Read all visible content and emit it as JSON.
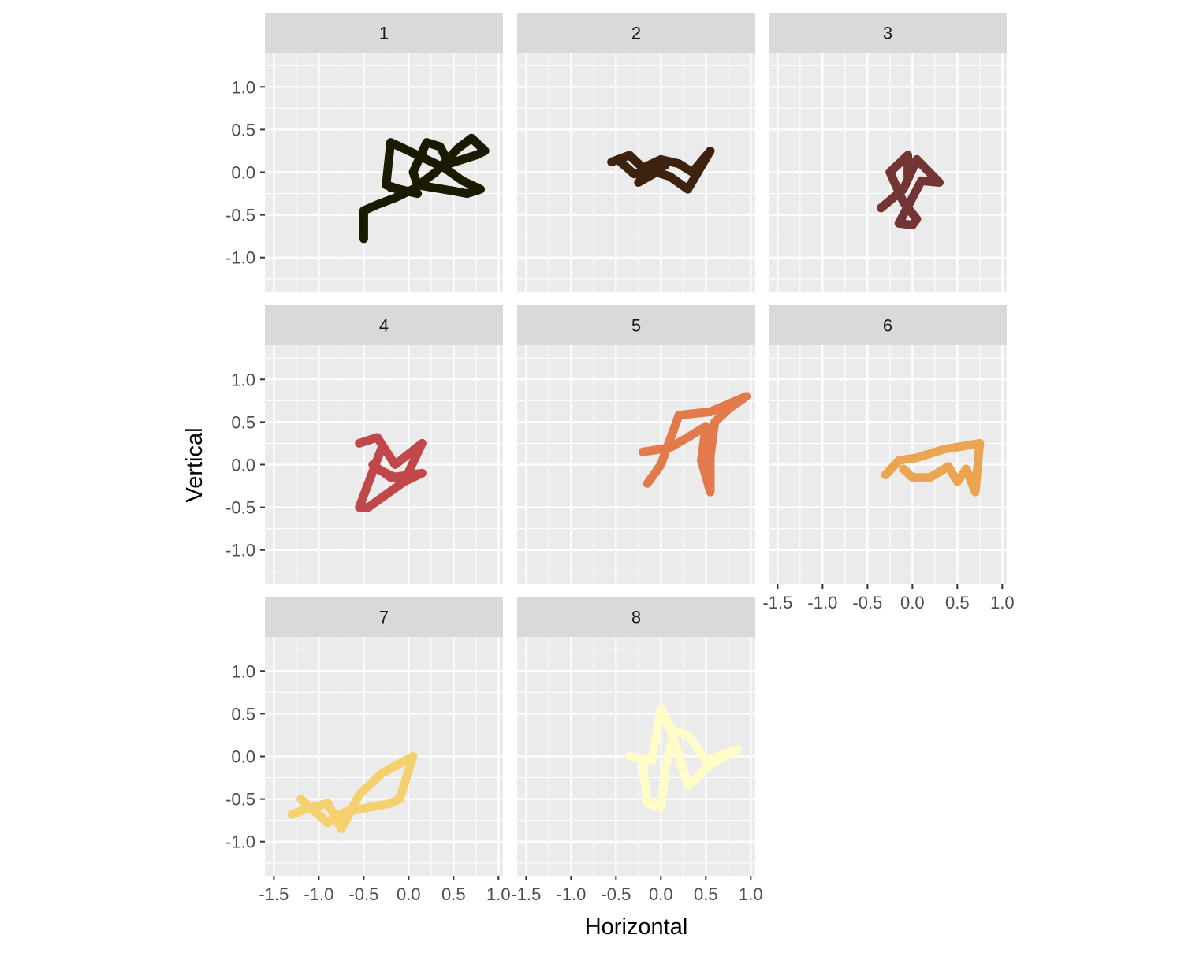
{
  "chart_data": {
    "type": "line",
    "facet_layout": "wrap",
    "xlabel": "Horizontal",
    "ylabel": "Vertical",
    "xlim": [
      -1.6,
      1.05
    ],
    "ylim": [
      -1.4,
      1.4
    ],
    "x_ticks": [
      -1.5,
      -1.0,
      -0.5,
      0.0,
      0.5,
      1.0
    ],
    "x_tick_labels": [
      "-1.5",
      "-1.0",
      "-0.5",
      "0.0",
      "0.5",
      "1.0"
    ],
    "y_ticks": [
      -1.0,
      -0.5,
      0.0,
      0.5,
      1.0
    ],
    "y_tick_labels": [
      "-1.0",
      "-0.5",
      "0.0",
      "0.5",
      "1.0"
    ],
    "grid": true,
    "legend": "none",
    "panel_background": "#EBEBEB",
    "strip_background": "#D9D9D9",
    "grid_color": "#FFFFFF",
    "series": [
      {
        "panel": "1",
        "color": "#1A1A00",
        "x": [
          -0.5,
          -0.5,
          -0.35,
          -0.15,
          0.05,
          0.3,
          0.55,
          0.7,
          0.85,
          0.75,
          0.45,
          0.35,
          0.2,
          0.05,
          0.1,
          0.5,
          0.65,
          0.8,
          0.6,
          0.4,
          0.2,
          0.0,
          -0.2,
          -0.25,
          -0.1,
          0.1,
          -0.2
        ],
        "y": [
          -0.78,
          -0.45,
          -0.38,
          -0.3,
          -0.2,
          0.0,
          0.28,
          0.4,
          0.25,
          0.2,
          0.1,
          0.3,
          0.35,
          0.0,
          -0.15,
          -0.22,
          -0.25,
          -0.2,
          -0.1,
          0.05,
          0.15,
          0.25,
          0.35,
          -0.15,
          -0.2,
          -0.25,
          -0.18
        ]
      },
      {
        "panel": "2",
        "color": "#3E2210",
        "x": [
          -0.55,
          -0.35,
          -0.2,
          0.0,
          0.2,
          0.35,
          0.55,
          0.3,
          0.1,
          -0.05,
          -0.25,
          -0.1,
          0.05,
          -0.15,
          -0.3,
          -0.45
        ],
        "y": [
          0.12,
          0.2,
          0.05,
          0.15,
          0.1,
          0.0,
          0.25,
          -0.2,
          -0.05,
          0.0,
          -0.12,
          0.05,
          0.08,
          0.0,
          -0.02,
          0.12
        ]
      },
      {
        "panel": "3",
        "color": "#723534",
        "x": [
          -0.35,
          -0.1,
          0.05,
          0.3,
          0.1,
          -0.15,
          0.0,
          0.05,
          -0.1,
          -0.25,
          -0.05,
          -0.05
        ],
        "y": [
          -0.42,
          -0.2,
          0.15,
          -0.12,
          -0.1,
          -0.6,
          -0.62,
          -0.55,
          -0.35,
          0.0,
          0.2,
          -0.05
        ]
      },
      {
        "panel": "4",
        "color": "#C0484A",
        "x": [
          -0.55,
          -0.35,
          -0.15,
          0.15,
          -0.05,
          -0.35,
          -0.4,
          -0.2,
          0.15,
          -0.05,
          -0.25,
          -0.45,
          -0.55,
          -0.3
        ],
        "y": [
          0.25,
          0.32,
          0.0,
          0.25,
          -0.2,
          -0.05,
          0.0,
          -0.15,
          -0.1,
          -0.2,
          -0.35,
          -0.5,
          -0.5,
          0.2
        ]
      },
      {
        "panel": "5",
        "color": "#E27A4C",
        "x": [
          -0.15,
          0.0,
          0.2,
          0.55,
          0.95,
          0.75,
          0.6,
          0.55,
          0.55,
          0.45,
          0.5,
          0.3,
          0.1,
          -0.2
        ],
        "y": [
          -0.22,
          0.0,
          0.58,
          0.62,
          0.8,
          0.65,
          0.5,
          0.1,
          -0.32,
          0.05,
          0.45,
          0.32,
          0.2,
          0.15
        ]
      },
      {
        "panel": "6",
        "color": "#EBA551",
        "x": [
          -0.3,
          -0.15,
          0.05,
          0.35,
          0.75,
          0.7,
          0.6,
          0.5,
          0.4,
          0.2,
          0.0,
          -0.1
        ],
        "y": [
          -0.12,
          0.05,
          0.08,
          0.18,
          0.25,
          -0.32,
          -0.05,
          -0.2,
          -0.02,
          -0.15,
          -0.15,
          -0.05
        ]
      },
      {
        "panel": "7",
        "color": "#F4D06E",
        "x": [
          -1.3,
          -1.1,
          -0.9,
          -0.75,
          -0.55,
          -0.3,
          0.05,
          -0.1,
          -0.2,
          -0.45,
          -0.7,
          -0.8,
          -0.9,
          -1.2
        ],
        "y": [
          -0.68,
          -0.6,
          -0.55,
          -0.85,
          -0.45,
          -0.2,
          0.0,
          -0.5,
          -0.55,
          -0.6,
          -0.65,
          -0.7,
          -0.78,
          -0.5
        ]
      },
      {
        "panel": "8",
        "color": "#FFFCC8",
        "x": [
          -0.35,
          -0.1,
          0.0,
          0.1,
          0.3,
          0.55,
          0.85,
          0.5,
          0.3,
          0.15,
          0.05,
          0.0,
          -0.15,
          -0.2
        ],
        "y": [
          0.0,
          -0.05,
          0.55,
          0.35,
          -0.35,
          -0.1,
          0.08,
          -0.05,
          0.25,
          0.3,
          -0.15,
          -0.6,
          -0.55,
          -0.1
        ]
      }
    ]
  }
}
